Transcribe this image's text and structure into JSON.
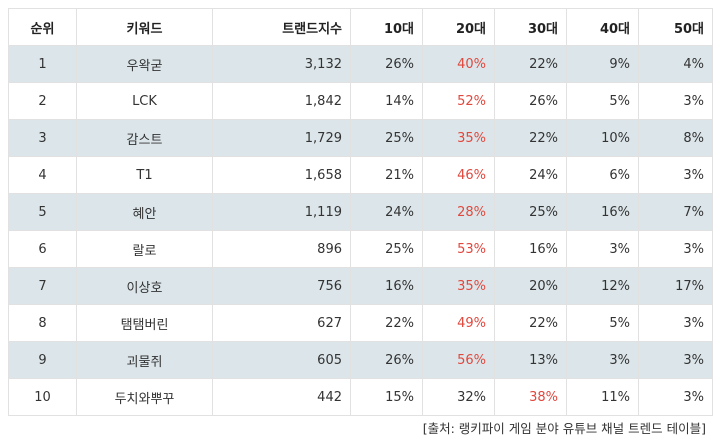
{
  "table": {
    "headers": [
      "순위",
      "키워드",
      "트랜드지수",
      "10대",
      "20대",
      "30대",
      "40대",
      "50대"
    ],
    "rows": [
      {
        "rank": "1",
        "keyword": "우왁굳",
        "index": "3,132",
        "ages": [
          "26%",
          "40%",
          "22%",
          "9%",
          "4%"
        ],
        "highlight": 1
      },
      {
        "rank": "2",
        "keyword": "LCK",
        "index": "1,842",
        "ages": [
          "14%",
          "52%",
          "26%",
          "5%",
          "3%"
        ],
        "highlight": 1
      },
      {
        "rank": "3",
        "keyword": "감스트",
        "index": "1,729",
        "ages": [
          "25%",
          "35%",
          "22%",
          "10%",
          "8%"
        ],
        "highlight": 1
      },
      {
        "rank": "4",
        "keyword": "T1",
        "index": "1,658",
        "ages": [
          "21%",
          "46%",
          "24%",
          "6%",
          "3%"
        ],
        "highlight": 1
      },
      {
        "rank": "5",
        "keyword": "혜안",
        "index": "1,119",
        "ages": [
          "24%",
          "28%",
          "25%",
          "16%",
          "7%"
        ],
        "highlight": 1
      },
      {
        "rank": "6",
        "keyword": "랄로",
        "index": "896",
        "ages": [
          "25%",
          "53%",
          "16%",
          "3%",
          "3%"
        ],
        "highlight": 1
      },
      {
        "rank": "7",
        "keyword": "이상호",
        "index": "756",
        "ages": [
          "16%",
          "35%",
          "20%",
          "12%",
          "17%"
        ],
        "highlight": 1
      },
      {
        "rank": "8",
        "keyword": "탬탬버린",
        "index": "627",
        "ages": [
          "22%",
          "49%",
          "22%",
          "5%",
          "3%"
        ],
        "highlight": 1
      },
      {
        "rank": "9",
        "keyword": "괴물쥐",
        "index": "605",
        "ages": [
          "26%",
          "56%",
          "13%",
          "3%",
          "3%"
        ],
        "highlight": 1
      },
      {
        "rank": "10",
        "keyword": "두치와뿌꾸",
        "index": "442",
        "ages": [
          "15%",
          "32%",
          "38%",
          "11%",
          "3%"
        ],
        "highlight": 2
      }
    ]
  },
  "caption": "[출처: 랭키파이 게임 분야 유튜브 채널 트렌드 테이블]",
  "colors": {
    "highlight": "#e0483e",
    "stripe": "#dce6ea",
    "border": "#e1e1e1"
  }
}
